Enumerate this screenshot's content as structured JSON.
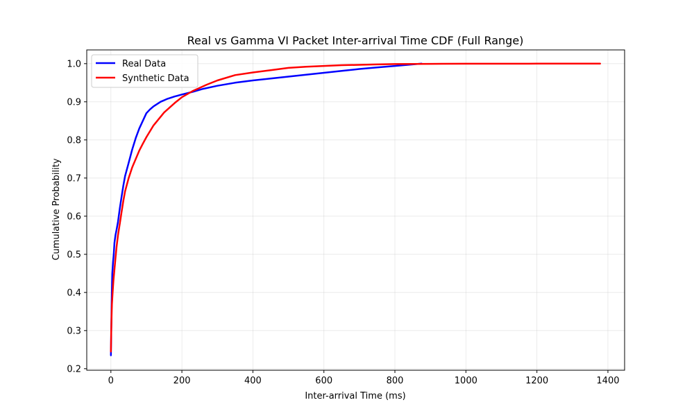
{
  "chart_data": {
    "type": "line",
    "title": "Real vs Gamma VI Packet Inter-arrival Time CDF (Full Range)",
    "xlabel": "Inter-arrival Time (ms)",
    "ylabel": "Cumulative Probability",
    "xlim": [
      -68,
      1447
    ],
    "ylim": [
      0.196,
      1.036
    ],
    "xticks": [
      0,
      200,
      400,
      600,
      800,
      1000,
      1200,
      1400
    ],
    "xtick_labels": [
      "0",
      "200",
      "400",
      "600",
      "800",
      "1000",
      "1200",
      "1400"
    ],
    "yticks": [
      0.2,
      0.3,
      0.4,
      0.5,
      0.6,
      0.7,
      0.8,
      0.9,
      1.0
    ],
    "ytick_labels": [
      "0.2",
      "0.3",
      "0.4",
      "0.5",
      "0.6",
      "0.7",
      "0.8",
      "0.9",
      "1.0"
    ],
    "grid": true,
    "legend_position": "top-left",
    "series": [
      {
        "name": "Real Data",
        "color": "#0000ff",
        "x": [
          0,
          1,
          2,
          3,
          4,
          6,
          8,
          10,
          13,
          16,
          20,
          25,
          30,
          35,
          40,
          50,
          60,
          70,
          80,
          90,
          100,
          110,
          120,
          140,
          160,
          180,
          200,
          230,
          260,
          300,
          350,
          400,
          450,
          500,
          550,
          600,
          650,
          700,
          750,
          800,
          850,
          875
        ],
        "y": [
          0.235,
          0.3,
          0.36,
          0.41,
          0.45,
          0.48,
          0.5,
          0.53,
          0.55,
          0.565,
          0.585,
          0.62,
          0.65,
          0.68,
          0.705,
          0.74,
          0.775,
          0.805,
          0.83,
          0.85,
          0.87,
          0.88,
          0.888,
          0.9,
          0.908,
          0.914,
          0.919,
          0.926,
          0.934,
          0.942,
          0.95,
          0.956,
          0.961,
          0.966,
          0.971,
          0.976,
          0.981,
          0.986,
          0.99,
          0.994,
          0.998,
          1.0
        ]
      },
      {
        "name": "Synthetic Data",
        "color": "#ff0000",
        "x": [
          0,
          1,
          2,
          3,
          5,
          7,
          10,
          13,
          16,
          20,
          25,
          30,
          35,
          40,
          50,
          60,
          70,
          80,
          90,
          100,
          120,
          150,
          180,
          200,
          230,
          270,
          300,
          350,
          400,
          450,
          500,
          550,
          600,
          650,
          700,
          750,
          800,
          900,
          1000,
          1100,
          1200,
          1300,
          1378
        ],
        "y": [
          0.245,
          0.3,
          0.34,
          0.37,
          0.4,
          0.43,
          0.46,
          0.49,
          0.52,
          0.55,
          0.58,
          0.61,
          0.64,
          0.665,
          0.7,
          0.728,
          0.75,
          0.772,
          0.79,
          0.807,
          0.838,
          0.872,
          0.897,
          0.912,
          0.928,
          0.945,
          0.956,
          0.97,
          0.977,
          0.983,
          0.989,
          0.992,
          0.994,
          0.996,
          0.997,
          0.998,
          0.999,
          0.9995,
          0.9998,
          0.9999,
          1.0,
          1.0,
          1.0
        ]
      }
    ]
  }
}
